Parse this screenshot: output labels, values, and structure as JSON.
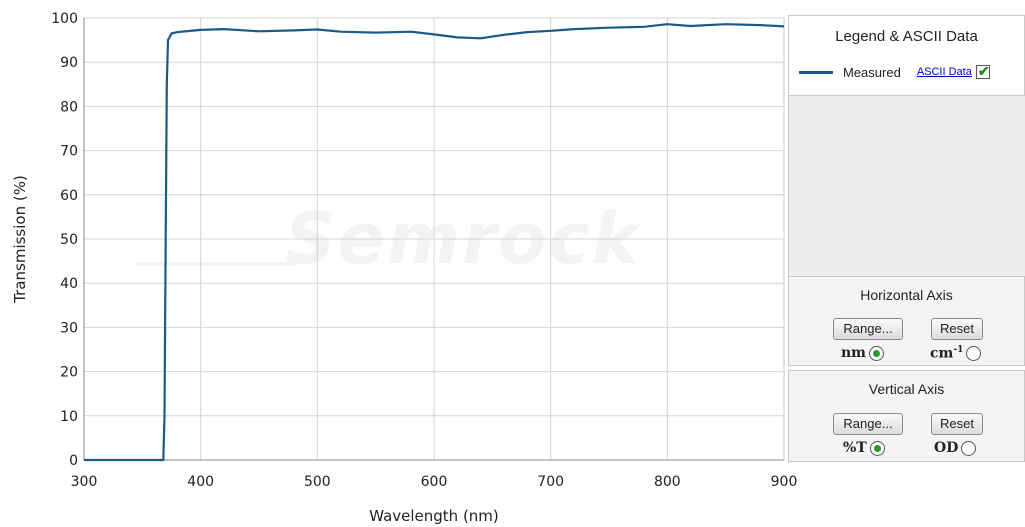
{
  "chart_data": {
    "type": "line",
    "title": "",
    "xlabel": "Wavelength (nm)",
    "ylabel": "Transmission (%)",
    "xlim": [
      300,
      900
    ],
    "ylim": [
      0,
      100
    ],
    "x_ticks": [
      "300",
      "400",
      "500",
      "600",
      "700",
      "800",
      "900"
    ],
    "y_ticks": [
      "0",
      "10",
      "20",
      "30",
      "40",
      "50",
      "60",
      "70",
      "80",
      "90",
      "100"
    ],
    "grid": true,
    "legend_position": "right",
    "series": [
      {
        "name": "Measured",
        "color": "#1b5a87",
        "x": [
          300,
          350,
          368,
          369,
          370,
          371,
          372,
          375,
          380,
          400,
          420,
          450,
          480,
          500,
          520,
          550,
          580,
          600,
          620,
          640,
          660,
          680,
          700,
          720,
          750,
          780,
          800,
          820,
          850,
          880,
          900
        ],
        "y": [
          0,
          0,
          0,
          10,
          50,
          85,
          95,
          96.5,
          96.8,
          97.3,
          97.5,
          97.0,
          97.2,
          97.4,
          96.9,
          96.7,
          96.9,
          96.3,
          95.6,
          95.4,
          96.2,
          96.8,
          97.1,
          97.5,
          97.8,
          98.0,
          98.6,
          98.2,
          98.6,
          98.4,
          98.1
        ]
      }
    ]
  },
  "watermark_text": "Semrock",
  "legend_panel": {
    "title": "Legend & ASCII Data",
    "series_label": "Measured",
    "ascii_link": "ASCII Data",
    "checked": true
  },
  "horizontal_axis_panel": {
    "title": "Horizontal Axis",
    "range_label": "Range...",
    "reset_label": "Reset",
    "unit1": "nm",
    "unit2_base": "cm",
    "unit2_exp": "-1",
    "selected": "nm"
  },
  "vertical_axis_panel": {
    "title": "Vertical  Axis",
    "range_label": "Range...",
    "reset_label": "Reset",
    "unit1": "%T",
    "unit2": "OD",
    "selected": "%T"
  }
}
